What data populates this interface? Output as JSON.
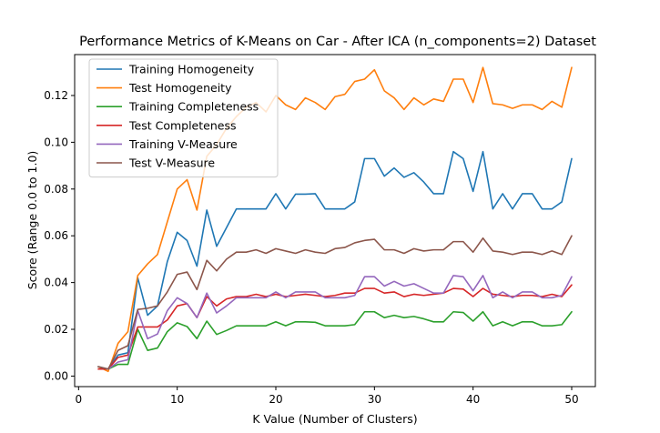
{
  "chart_data": {
    "type": "line",
    "title": "Performance Metrics of K-Means on Car - After ICA (n_components=2) Dataset",
    "xlabel": "K Value (Number of Clusters)",
    "ylabel": "Score (Range 0.0 to 1.0)",
    "xlim": [
      -0.4,
      52.4
    ],
    "ylim": [
      -0.0045,
      0.1375
    ],
    "xticks": [
      0,
      10,
      20,
      30,
      40,
      50
    ],
    "yticks": [
      0.0,
      0.02,
      0.04,
      0.06,
      0.08,
      0.1,
      0.12
    ],
    "ytick_labels": [
      "0.00",
      "0.02",
      "0.04",
      "0.06",
      "0.08",
      "0.10",
      "0.12"
    ],
    "grid": false,
    "legend_position": "top-left",
    "x": [
      2,
      3,
      4,
      5,
      6,
      7,
      8,
      9,
      10,
      11,
      12,
      13,
      14,
      15,
      16,
      17,
      18,
      19,
      20,
      21,
      22,
      23,
      24,
      25,
      26,
      27,
      28,
      29,
      30,
      31,
      32,
      33,
      34,
      35,
      36,
      37,
      38,
      39,
      40,
      41,
      42,
      43,
      44,
      45,
      46,
      47,
      48,
      49,
      50
    ],
    "series": [
      {
        "name": "Training Homogeneity",
        "color": "#1f77b4",
        "values": [
          0.004,
          0.003,
          0.009,
          0.01,
          0.042,
          0.026,
          0.03,
          0.049,
          0.0615,
          0.058,
          0.047,
          0.071,
          0.0555,
          0.0635,
          0.0715,
          0.0715,
          0.0715,
          0.0715,
          0.078,
          0.0715,
          0.0778,
          0.0778,
          0.078,
          0.0715,
          0.0715,
          0.0715,
          0.0745,
          0.093,
          0.093,
          0.0855,
          0.089,
          0.085,
          0.087,
          0.083,
          0.078,
          0.078,
          0.096,
          0.093,
          0.079,
          0.096,
          0.0715,
          0.078,
          0.0715,
          0.078,
          0.078,
          0.0715,
          0.0715,
          0.0745,
          0.093
        ]
      },
      {
        "name": "Test Homogeneity",
        "color": "#ff7f0e",
        "values": [
          0.004,
          0.002,
          0.014,
          0.019,
          0.043,
          0.048,
          0.052,
          0.066,
          0.08,
          0.084,
          0.071,
          0.094,
          0.099,
          0.106,
          0.111,
          0.115,
          0.117,
          0.113,
          0.12,
          0.116,
          0.114,
          0.119,
          0.117,
          0.114,
          0.1195,
          0.1205,
          0.126,
          0.127,
          0.131,
          0.122,
          0.119,
          0.114,
          0.119,
          0.116,
          0.1185,
          0.1175,
          0.127,
          0.127,
          0.117,
          0.132,
          0.1165,
          0.116,
          0.1145,
          0.116,
          0.116,
          0.114,
          0.1175,
          0.115,
          0.132
        ]
      },
      {
        "name": "Training Completeness",
        "color": "#2ca02c",
        "values": [
          0.004,
          0.003,
          0.005,
          0.005,
          0.02,
          0.011,
          0.012,
          0.019,
          0.0228,
          0.0212,
          0.016,
          0.0235,
          0.0178,
          0.0195,
          0.0215,
          0.0215,
          0.0215,
          0.0215,
          0.0232,
          0.0215,
          0.0232,
          0.0232,
          0.023,
          0.0215,
          0.0215,
          0.0215,
          0.022,
          0.0275,
          0.0275,
          0.025,
          0.026,
          0.025,
          0.0255,
          0.0245,
          0.0232,
          0.0232,
          0.0275,
          0.0272,
          0.0235,
          0.0275,
          0.0215,
          0.0232,
          0.0215,
          0.0232,
          0.0232,
          0.0215,
          0.0215,
          0.022,
          0.0275
        ]
      },
      {
        "name": "Test Completeness",
        "color": "#d62728",
        "values": [
          0.003,
          0.003,
          0.008,
          0.009,
          0.021,
          0.021,
          0.021,
          0.024,
          0.03,
          0.031,
          0.025,
          0.034,
          0.03,
          0.033,
          0.034,
          0.034,
          0.035,
          0.034,
          0.035,
          0.034,
          0.0345,
          0.035,
          0.0345,
          0.034,
          0.0345,
          0.0355,
          0.0355,
          0.0375,
          0.0375,
          0.0355,
          0.036,
          0.034,
          0.035,
          0.0345,
          0.035,
          0.0355,
          0.0375,
          0.0372,
          0.034,
          0.0375,
          0.035,
          0.0345,
          0.034,
          0.0345,
          0.0345,
          0.034,
          0.035,
          0.034,
          0.039
        ]
      },
      {
        "name": "Training V-Measure",
        "color": "#9467bd",
        "values": [
          0.004,
          0.003,
          0.006,
          0.007,
          0.028,
          0.016,
          0.018,
          0.028,
          0.0335,
          0.031,
          0.025,
          0.0355,
          0.027,
          0.03,
          0.0335,
          0.0335,
          0.0335,
          0.0335,
          0.036,
          0.0335,
          0.036,
          0.036,
          0.036,
          0.0335,
          0.0335,
          0.0335,
          0.0345,
          0.0425,
          0.0425,
          0.0385,
          0.0405,
          0.0385,
          0.0395,
          0.0375,
          0.0355,
          0.0355,
          0.043,
          0.0425,
          0.0365,
          0.043,
          0.0335,
          0.036,
          0.0335,
          0.036,
          0.036,
          0.0335,
          0.0335,
          0.0345,
          0.0425
        ]
      },
      {
        "name": "Test V-Measure",
        "color": "#8c564b",
        "values": [
          0.004,
          0.003,
          0.011,
          0.013,
          0.0285,
          0.029,
          0.03,
          0.036,
          0.0435,
          0.0445,
          0.037,
          0.0495,
          0.045,
          0.05,
          0.053,
          0.053,
          0.054,
          0.0525,
          0.0545,
          0.0535,
          0.0525,
          0.054,
          0.053,
          0.0525,
          0.0545,
          0.055,
          0.057,
          0.058,
          0.0585,
          0.054,
          0.054,
          0.0525,
          0.0545,
          0.0535,
          0.054,
          0.054,
          0.0575,
          0.0575,
          0.053,
          0.059,
          0.0535,
          0.053,
          0.052,
          0.053,
          0.053,
          0.052,
          0.0535,
          0.052,
          0.06
        ]
      }
    ]
  }
}
